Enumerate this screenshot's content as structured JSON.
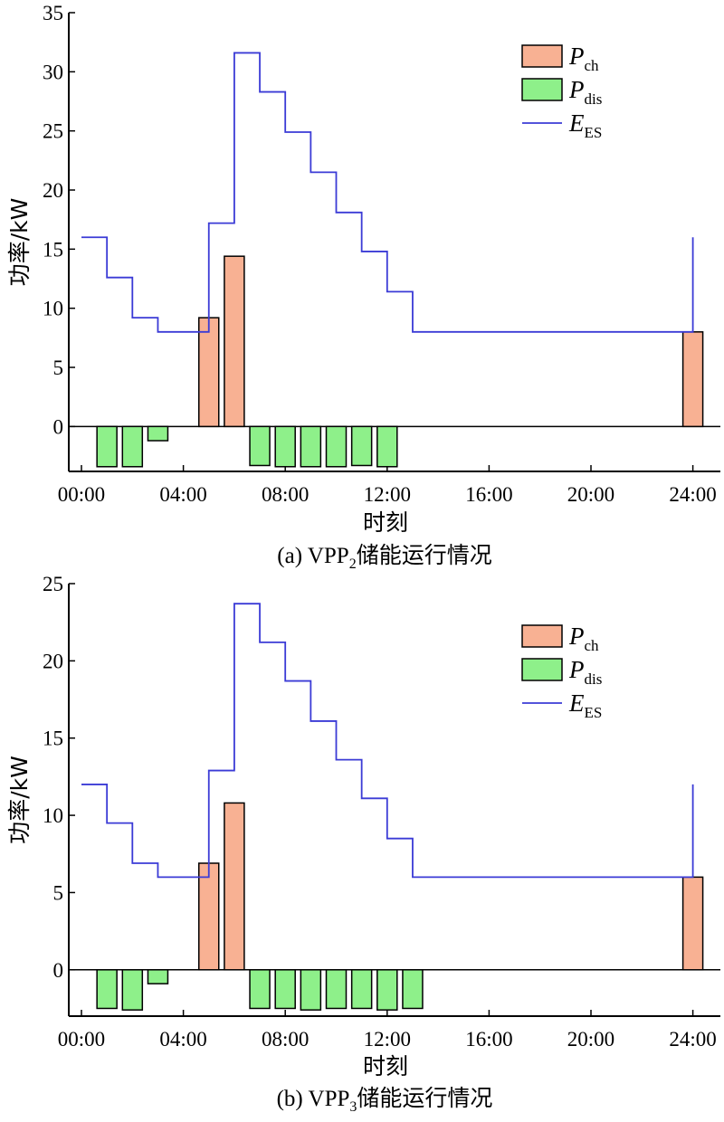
{
  "chart_data": [
    {
      "type": "bar",
      "panel": "a",
      "caption": {
        "prefix": "(a) VPP",
        "sub": "2",
        "suffix": "储能运行情况"
      },
      "xlabel": "时刻",
      "ylabel": "功率/kW",
      "ylim": [
        -3.8,
        35
      ],
      "yticks": [
        0,
        5,
        10,
        15,
        20,
        25,
        30,
        35
      ],
      "xlim": [
        -0.5,
        25
      ],
      "xticks": [
        0,
        4,
        8,
        12,
        16,
        20,
        24
      ],
      "xtick_labels": [
        "00:00",
        "04:00",
        "08:00",
        "12:00",
        "16:00",
        "20:00",
        "24:00"
      ],
      "legend": {
        "position": "top-right",
        "entries": [
          {
            "key": "ch",
            "base": "P",
            "sub": "ch"
          },
          {
            "key": "dis",
            "base": "P",
            "sub": "dis"
          },
          {
            "key": "es",
            "base": "E",
            "sub": "ES"
          }
        ]
      },
      "colors": {
        "ch": "#f8b193",
        "dis": "#8ef08a",
        "es": "#3b3bd6"
      },
      "series": [
        {
          "key": "ch",
          "type": "bar",
          "x": [
            5,
            6,
            24
          ],
          "values": [
            9.2,
            14.4,
            8.0
          ]
        },
        {
          "key": "dis",
          "type": "bar",
          "x": [
            1,
            2,
            3,
            7,
            8,
            9,
            10,
            11,
            12
          ],
          "values": [
            -3.4,
            -3.4,
            -1.2,
            -3.3,
            -3.4,
            -3.4,
            -3.4,
            -3.3,
            -3.4
          ]
        },
        {
          "key": "es",
          "type": "step",
          "x": [
            0,
            1,
            2,
            3,
            4,
            5,
            6,
            7,
            8,
            9,
            10,
            11,
            12,
            13,
            14,
            15,
            16,
            17,
            18,
            19,
            20,
            21,
            22,
            23,
            24
          ],
          "values": [
            16.0,
            12.6,
            9.2,
            8.0,
            8.0,
            17.2,
            31.6,
            28.3,
            24.9,
            21.5,
            18.1,
            14.8,
            11.4,
            8.0,
            8.0,
            8.0,
            8.0,
            8.0,
            8.0,
            8.0,
            8.0,
            8.0,
            8.0,
            8.0,
            16.0
          ]
        }
      ]
    },
    {
      "type": "bar",
      "panel": "b",
      "caption": {
        "prefix": "(b) VPP",
        "sub": "3",
        "suffix": "储能运行情况"
      },
      "xlabel": "时刻",
      "ylabel": "功率/kW",
      "ylim": [
        -3.0,
        25
      ],
      "yticks": [
        0,
        5,
        10,
        15,
        20,
        25
      ],
      "xlim": [
        -0.5,
        25
      ],
      "xticks": [
        0,
        4,
        8,
        12,
        16,
        20,
        24
      ],
      "xtick_labels": [
        "00:00",
        "04:00",
        "08:00",
        "12:00",
        "16:00",
        "20:00",
        "24:00"
      ],
      "legend": {
        "position": "top-right",
        "entries": [
          {
            "key": "ch",
            "base": "P",
            "sub": "ch"
          },
          {
            "key": "dis",
            "base": "P",
            "sub": "dis"
          },
          {
            "key": "es",
            "base": "E",
            "sub": "ES"
          }
        ]
      },
      "colors": {
        "ch": "#f8b193",
        "dis": "#8ef08a",
        "es": "#3b3bd6"
      },
      "series": [
        {
          "key": "ch",
          "type": "bar",
          "x": [
            5,
            6,
            24
          ],
          "values": [
            6.9,
            10.8,
            6.0
          ]
        },
        {
          "key": "dis",
          "type": "bar",
          "x": [
            1,
            2,
            3,
            7,
            8,
            9,
            10,
            11,
            12,
            13
          ],
          "values": [
            -2.5,
            -2.6,
            -0.9,
            -2.5,
            -2.5,
            -2.6,
            -2.5,
            -2.5,
            -2.6,
            -2.5
          ]
        },
        {
          "key": "es",
          "type": "step",
          "x": [
            0,
            1,
            2,
            3,
            4,
            5,
            6,
            7,
            8,
            9,
            10,
            11,
            12,
            13,
            14,
            15,
            16,
            17,
            18,
            19,
            20,
            21,
            22,
            23,
            24
          ],
          "values": [
            12.0,
            9.5,
            6.9,
            6.0,
            6.0,
            12.9,
            23.7,
            21.2,
            18.7,
            16.1,
            13.6,
            11.1,
            8.5,
            6.0,
            6.0,
            6.0,
            6.0,
            6.0,
            6.0,
            6.0,
            6.0,
            6.0,
            6.0,
            6.0,
            12.0
          ]
        }
      ]
    }
  ]
}
